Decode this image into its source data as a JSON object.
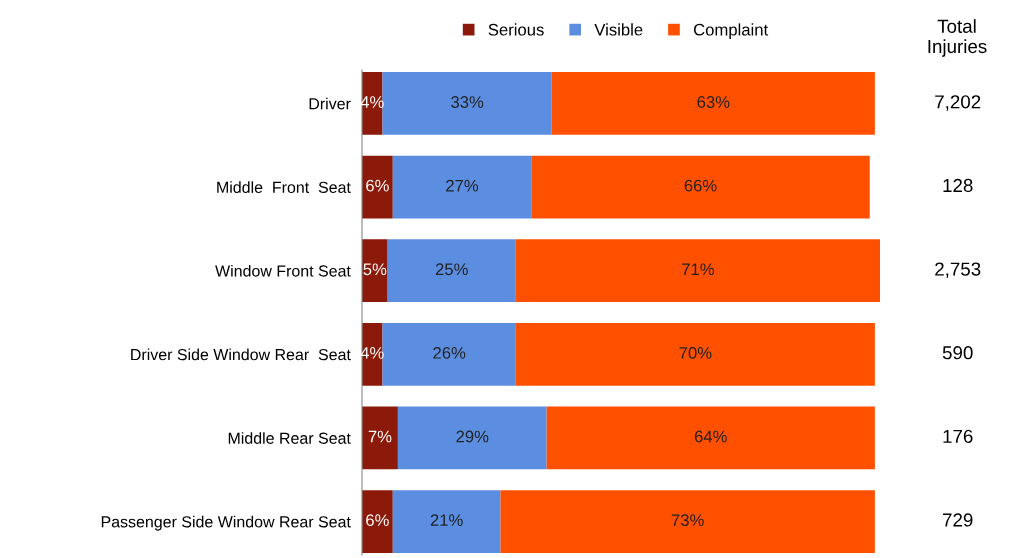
{
  "chart_data": {
    "type": "bar",
    "orientation": "horizontal",
    "stacked": true,
    "legend": "top",
    "grid": false,
    "categories": [
      "Driver",
      "Middle  Front  Seat",
      "Window Front Seat",
      "Driver Side Window Rear  Seat",
      "Middle Rear Seat",
      "Passenger Side Window Rear Seat"
    ],
    "series": [
      {
        "name": "Serious",
        "color": "#8b1a0a",
        "values": [
          4,
          6,
          5,
          4,
          7,
          6
        ],
        "value_labels": [
          "4%",
          "6%",
          "5%",
          "4%",
          "7%",
          "6%"
        ]
      },
      {
        "name": "Visible",
        "color": "#5b8ee0",
        "values": [
          33,
          27,
          25,
          26,
          29,
          21
        ],
        "value_labels": [
          "33%",
          "27%",
          "25%",
          "26%",
          "29%",
          "21%"
        ]
      },
      {
        "name": "Complaint",
        "color": "#ff5000",
        "values": [
          63,
          66,
          71,
          70,
          64,
          73
        ],
        "value_labels": [
          "63%",
          "66%",
          "71%",
          "70%",
          "64%",
          "73%"
        ]
      }
    ],
    "annotations": [
      "Total\nInjuries",
      "7,202",
      "128",
      "2,753",
      "590",
      "176",
      "729"
    ]
  }
}
